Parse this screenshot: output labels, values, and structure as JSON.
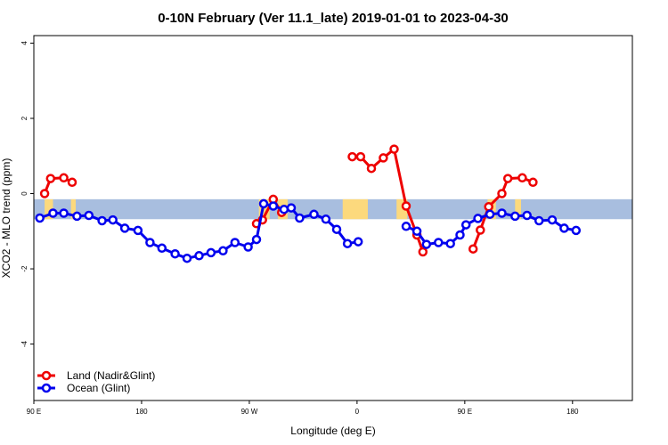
{
  "chart_data": {
    "type": "line",
    "title": "0-10N February (Ver 11.1_late)   2019-01-01 to 2023-04-30",
    "xlabel": "Longitude (deg E)",
    "ylabel": "XCO2 - MLO trend (ppm)",
    "xlim": [
      90,
      590
    ],
    "ylim": [
      -5.5,
      4.2
    ],
    "x_ticks": [
      {
        "value": 90,
        "label": "90 E"
      },
      {
        "value": 180,
        "label": "180"
      },
      {
        "value": 270,
        "label": "90 W"
      },
      {
        "value": 360,
        "label": "0"
      },
      {
        "value": 450,
        "label": "90 E"
      },
      {
        "value": 540,
        "label": "180"
      }
    ],
    "y_ticks": [
      {
        "value": 4,
        "label": "4"
      },
      {
        "value": 2,
        "label": "2"
      },
      {
        "value": 0,
        "label": "0"
      },
      {
        "value": -2,
        "label": "-2"
      },
      {
        "value": -4,
        "label": "-4"
      }
    ],
    "background_band": {
      "y_top": -0.15,
      "y_bottom": -0.68,
      "ocean_color": "#a8bedf",
      "land_color": "#fcd97d"
    },
    "land_segments": [
      [
        99,
        106
      ],
      [
        121,
        125
      ],
      [
        278,
        287
      ],
      [
        294,
        302
      ],
      [
        348,
        369
      ],
      [
        393,
        402
      ],
      [
        469,
        476
      ],
      [
        492,
        497
      ]
    ],
    "series": [
      {
        "name": "Land (Nadir&Glint)",
        "color": "#ee0000",
        "segments": [
          [
            [
              99,
              0.0
            ],
            [
              104,
              0.4
            ],
            [
              115,
              0.42
            ],
            [
              122,
              0.3
            ]
          ],
          [
            [
              276,
              -0.8
            ],
            [
              281,
              -0.7
            ],
            [
              290,
              -0.15
            ],
            [
              297,
              -0.5
            ]
          ],
          [
            [
              356,
              0.98
            ],
            [
              363,
              0.98
            ],
            [
              372,
              0.67
            ],
            [
              382,
              0.95
            ],
            [
              391,
              1.18
            ],
            [
              401,
              -0.33
            ],
            [
              410,
              -1.1
            ],
            [
              415,
              -1.55
            ]
          ],
          [
            [
              457,
              -1.47
            ],
            [
              463,
              -0.97
            ],
            [
              470,
              -0.35
            ],
            [
              481,
              0.0
            ],
            [
              486,
              0.4
            ],
            [
              498,
              0.42
            ],
            [
              507,
              0.3
            ]
          ]
        ]
      },
      {
        "name": "Ocean (Glint)",
        "color": "#0000ee",
        "segments": [
          [
            [
              95,
              -0.65
            ],
            [
              106,
              -0.52
            ],
            [
              115,
              -0.52
            ],
            [
              126,
              -0.6
            ],
            [
              136,
              -0.58
            ],
            [
              147,
              -0.72
            ],
            [
              156,
              -0.7
            ],
            [
              166,
              -0.92
            ],
            [
              177,
              -0.98
            ],
            [
              187,
              -1.3
            ],
            [
              197,
              -1.45
            ],
            [
              208,
              -1.6
            ],
            [
              218,
              -1.72
            ],
            [
              228,
              -1.65
            ],
            [
              238,
              -1.57
            ],
            [
              248,
              -1.52
            ],
            [
              258,
              -1.3
            ],
            [
              269,
              -1.42
            ],
            [
              276,
              -1.22
            ],
            [
              282,
              -0.27
            ],
            [
              290,
              -0.33
            ],
            [
              299,
              -0.42
            ],
            [
              305,
              -0.38
            ],
            [
              312,
              -0.65
            ],
            [
              324,
              -0.55
            ],
            [
              334,
              -0.68
            ],
            [
              343,
              -0.95
            ],
            [
              352,
              -1.33
            ],
            [
              361,
              -1.28
            ]
          ],
          [
            [
              401,
              -0.87
            ],
            [
              410,
              -1.0
            ],
            [
              418,
              -1.35
            ],
            [
              428,
              -1.3
            ],
            [
              438,
              -1.33
            ],
            [
              446,
              -1.1
            ],
            [
              451,
              -0.83
            ],
            [
              461,
              -0.66
            ],
            [
              471,
              -0.55
            ],
            [
              481,
              -0.52
            ],
            [
              492,
              -0.6
            ],
            [
              502,
              -0.58
            ],
            [
              512,
              -0.72
            ],
            [
              523,
              -0.7
            ],
            [
              533,
              -0.92
            ],
            [
              543,
              -0.98
            ]
          ]
        ]
      }
    ],
    "legend": {
      "position": "bottom-left"
    }
  }
}
